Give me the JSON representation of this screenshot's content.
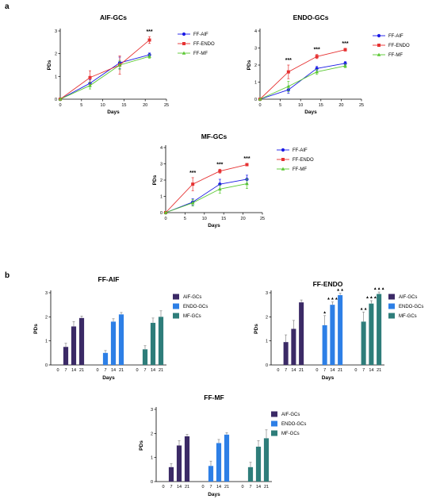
{
  "panels": [
    {
      "label": "a"
    },
    {
      "label": "b"
    }
  ],
  "chart_data": [
    {
      "type": "line",
      "title": "AIF-GCs",
      "xlabel": "Days",
      "ylabel": "PDs",
      "xlim": [
        0,
        25
      ],
      "ylim": [
        0,
        3
      ],
      "xticks": [
        0,
        5,
        10,
        15,
        20,
        25
      ],
      "yticks": [
        0,
        1,
        2,
        3
      ],
      "x": [
        0,
        7,
        14,
        21
      ],
      "legend": "right",
      "series": [
        {
          "name": "FF-AIF",
          "color": "#1a1ae6",
          "marker": "circle",
          "values": [
            0,
            0.7,
            1.6,
            1.95
          ],
          "errors": [
            0,
            0.15,
            0.25,
            0.08
          ]
        },
        {
          "name": "FF-ENDO",
          "color": "#e63232",
          "marker": "square",
          "values": [
            0,
            0.95,
            1.5,
            2.6
          ],
          "errors": [
            0,
            0.3,
            0.4,
            0.15
          ]
        },
        {
          "name": "FF-MF",
          "color": "#5ac832",
          "marker": "triangle",
          "values": [
            0,
            0.6,
            1.5,
            1.88
          ],
          "errors": [
            0,
            0.15,
            0.2,
            0.08
          ]
        }
      ],
      "annotations": [
        {
          "x": 21,
          "text": "***"
        }
      ]
    },
    {
      "type": "line",
      "title": "ENDO-GCs",
      "xlabel": "Days",
      "ylabel": "PDs",
      "xlim": [
        0,
        25
      ],
      "ylim": [
        0,
        4
      ],
      "xticks": [
        0,
        5,
        10,
        15,
        20,
        25
      ],
      "yticks": [
        0,
        1,
        2,
        3,
        4
      ],
      "x": [
        0,
        7,
        14,
        21
      ],
      "legend": "right",
      "series": [
        {
          "name": "FF-AIF",
          "color": "#1a1ae6",
          "marker": "circle",
          "values": [
            0,
            0.55,
            1.8,
            2.1
          ],
          "errors": [
            0,
            0.2,
            0.12,
            0.1
          ]
        },
        {
          "name": "FF-ENDO",
          "color": "#e63232",
          "marker": "square",
          "values": [
            0,
            1.6,
            2.5,
            2.9
          ],
          "errors": [
            0,
            0.4,
            0.12,
            0.08
          ]
        },
        {
          "name": "FF-MF",
          "color": "#5ac832",
          "marker": "triangle",
          "values": [
            0,
            0.75,
            1.6,
            1.95
          ],
          "errors": [
            0,
            0.3,
            0.15,
            0.1
          ]
        }
      ],
      "annotations": [
        {
          "x": 7,
          "text": "***"
        },
        {
          "x": 14,
          "text": "***"
        },
        {
          "x": 21,
          "text": "***"
        }
      ]
    },
    {
      "type": "line",
      "title": "MF-GCs",
      "xlabel": "Days",
      "ylabel": "PDs",
      "xlim": [
        0,
        25
      ],
      "ylim": [
        0,
        4
      ],
      "xticks": [
        0,
        5,
        10,
        15,
        20,
        25
      ],
      "yticks": [
        0,
        1,
        2,
        3,
        4
      ],
      "x": [
        0,
        7,
        14,
        21
      ],
      "legend": "right",
      "series": [
        {
          "name": "FF-AIF",
          "color": "#1a1ae6",
          "marker": "circle",
          "values": [
            0,
            0.65,
            1.75,
            2.05
          ],
          "errors": [
            0,
            0.2,
            0.3,
            0.25
          ]
        },
        {
          "name": "FF-ENDO",
          "color": "#e63232",
          "marker": "square",
          "values": [
            0,
            1.75,
            2.55,
            2.95
          ],
          "errors": [
            0,
            0.4,
            0.12,
            0.08
          ]
        },
        {
          "name": "FF-MF",
          "color": "#5ac832",
          "marker": "triangle",
          "values": [
            0,
            0.6,
            1.45,
            1.78
          ],
          "errors": [
            0,
            0.2,
            0.25,
            0.3
          ]
        }
      ],
      "annotations": [
        {
          "x": 7,
          "text": "***"
        },
        {
          "x": 14,
          "text": "***"
        },
        {
          "x": 21,
          "text": "***"
        }
      ]
    },
    {
      "type": "bar",
      "title": "FF-AIF",
      "xlabel": "Days",
      "ylabel": "PDs",
      "ylim": [
        0,
        3
      ],
      "yticks": [
        0,
        1,
        2,
        3
      ],
      "categories": [
        "0",
        "7",
        "14",
        "21"
      ],
      "legend": "right",
      "series": [
        {
          "name": "AIF-GCs",
          "color": "#3b2a66",
          "values": [
            0,
            0.75,
            1.6,
            1.95
          ],
          "errors": [
            0,
            0.15,
            0.2,
            0.08
          ]
        },
        {
          "name": "ENDO-GCs",
          "color": "#2d7fe6",
          "values": [
            0,
            0.5,
            1.8,
            2.1
          ],
          "errors": [
            0,
            0.1,
            0.12,
            0.08
          ]
        },
        {
          "name": "MF-GCs",
          "color": "#2e7d7a",
          "values": [
            0,
            0.65,
            1.75,
            2.0
          ],
          "errors": [
            0,
            0.15,
            0.2,
            0.25
          ]
        }
      ],
      "annotations": []
    },
    {
      "type": "bar",
      "title": "FF-ENDO",
      "xlabel": "Days",
      "ylabel": "PDs",
      "ylim": [
        0,
        3
      ],
      "yticks": [
        0,
        1,
        2,
        3
      ],
      "categories": [
        "0",
        "7",
        "14",
        "21"
      ],
      "legend": "right",
      "series": [
        {
          "name": "AIF-GCs",
          "color": "#3b2a66",
          "values": [
            0,
            0.95,
            1.5,
            2.6
          ],
          "errors": [
            0,
            0.3,
            0.35,
            0.1
          ]
        },
        {
          "name": "ENDO-GCs",
          "color": "#2d7fe6",
          "values": [
            0,
            1.65,
            2.5,
            2.9
          ],
          "errors": [
            0,
            0.4,
            0.12,
            0.08
          ]
        },
        {
          "name": "MF-GCs",
          "color": "#2e7d7a",
          "values": [
            0,
            1.8,
            2.55,
            2.95
          ],
          "errors": [
            0,
            0.4,
            0.12,
            0.08
          ]
        }
      ],
      "annotations": [
        {
          "series": "ENDO-GCs",
          "x": "7",
          "text": "▲"
        },
        {
          "series": "ENDO-GCs",
          "x": "14",
          "text": "▲▲▲"
        },
        {
          "series": "ENDO-GCs",
          "x": "21",
          "text": "▲▲"
        },
        {
          "series": "MF-GCs",
          "x": "7",
          "text": "▲▲"
        },
        {
          "series": "MF-GCs",
          "x": "14",
          "text": "▲▲▲"
        },
        {
          "series": "MF-GCs",
          "x": "21",
          "text": "▲▲▲"
        }
      ]
    },
    {
      "type": "bar",
      "title": "FF-MF",
      "xlabel": "Days",
      "ylabel": "PDs",
      "ylim": [
        0,
        3
      ],
      "yticks": [
        0,
        1,
        2,
        3
      ],
      "categories": [
        "0",
        "7",
        "14",
        "21"
      ],
      "legend": "right",
      "series": [
        {
          "name": "AIF-GCs",
          "color": "#3b2a66",
          "values": [
            0,
            0.6,
            1.5,
            1.88
          ],
          "errors": [
            0,
            0.15,
            0.2,
            0.08
          ]
        },
        {
          "name": "ENDO-GCs",
          "color": "#2d7fe6",
          "values": [
            0,
            0.65,
            1.6,
            1.95
          ],
          "errors": [
            0,
            0.2,
            0.15,
            0.08
          ]
        },
        {
          "name": "MF-GCs",
          "color": "#2e7d7a",
          "values": [
            0,
            0.6,
            1.45,
            1.8
          ],
          "errors": [
            0,
            0.2,
            0.25,
            0.35
          ]
        }
      ],
      "annotations": []
    }
  ]
}
